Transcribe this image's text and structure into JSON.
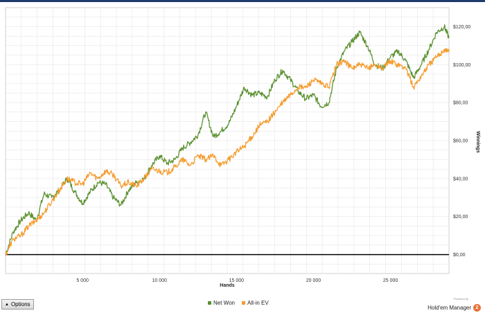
{
  "chart_data": {
    "type": "line",
    "xlabel": "Hands",
    "ylabel": "Winnings",
    "xlim": [
      0,
      28800
    ],
    "ylim": [
      -10,
      130
    ],
    "x_ticks": [
      {
        "value": 5000,
        "label": "5 000"
      },
      {
        "value": 10000,
        "label": "10 000"
      },
      {
        "value": 15000,
        "label": "15 000"
      },
      {
        "value": 20000,
        "label": "20 000"
      },
      {
        "value": 25000,
        "label": "25 000"
      }
    ],
    "y_ticks": [
      {
        "value": 0,
        "label": "$0,00"
      },
      {
        "value": 20,
        "label": "$20,00"
      },
      {
        "value": 40,
        "label": "$40,00"
      },
      {
        "value": 60,
        "label": "$60,00"
      },
      {
        "value": 80,
        "label": "$80,00"
      },
      {
        "value": 100,
        "label": "$100,00"
      },
      {
        "value": 120,
        "label": "$120,00"
      }
    ],
    "grid": true,
    "legend_position": "bottom",
    "x": [
      0,
      500,
      1000,
      1500,
      2000,
      2500,
      3000,
      3500,
      4000,
      4500,
      5000,
      5500,
      6000,
      6500,
      7000,
      7500,
      8000,
      8500,
      9000,
      9500,
      10000,
      10500,
      11000,
      11500,
      12000,
      12500,
      13000,
      13500,
      14000,
      14500,
      15000,
      15500,
      16000,
      16500,
      17000,
      17500,
      18000,
      18500,
      19000,
      19500,
      20000,
      20500,
      21000,
      21500,
      22000,
      22500,
      23000,
      23500,
      24000,
      24500,
      25000,
      25500,
      26000,
      26500,
      27000,
      27500,
      28000,
      28500,
      28800
    ],
    "series": [
      {
        "name": "Net Won",
        "color": "#5b9131",
        "values": [
          0,
          12,
          18,
          22,
          18,
          32,
          30,
          34,
          40,
          33,
          27,
          33,
          38,
          37,
          30,
          26,
          34,
          38,
          40,
          47,
          52,
          48,
          50,
          56,
          59,
          63,
          75,
          62,
          65,
          69,
          78,
          88,
          84,
          85,
          83,
          92,
          97,
          92,
          86,
          82,
          84,
          78,
          80,
          98,
          107,
          112,
          117,
          110,
          100,
          98,
          104,
          107,
          102,
          93,
          100,
          108,
          117,
          120,
          114
        ]
      },
      {
        "name": "All-in EV",
        "color": "#f59c2e",
        "values": [
          0,
          8,
          10,
          15,
          18,
          22,
          28,
          34,
          40,
          38,
          37,
          43,
          40,
          44,
          42,
          36,
          38,
          36,
          40,
          45,
          44,
          43,
          46,
          50,
          47,
          52,
          50,
          52,
          47,
          50,
          54,
          57,
          62,
          68,
          70,
          75,
          80,
          84,
          88,
          88,
          92,
          90,
          88,
          100,
          102,
          98,
          100,
          98,
          100,
          98,
          102,
          100,
          98,
          88,
          94,
          100,
          104,
          108,
          107
        ]
      }
    ]
  },
  "footer": {
    "options_label": "Options",
    "powered_by": "Powered by",
    "brand_name": "Hold'em Manager"
  },
  "badge_number": "2",
  "colors": {
    "zero_line": "#000000",
    "grid": "#e6e6e6",
    "badge": "#e8733a"
  }
}
